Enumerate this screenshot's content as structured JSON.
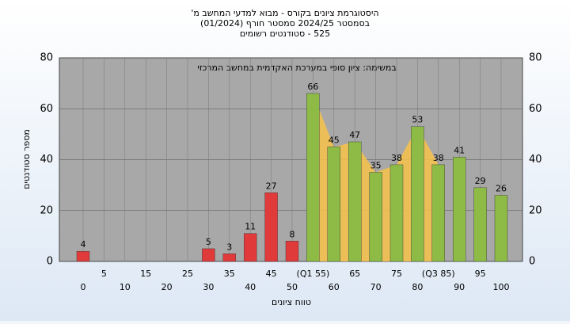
{
  "chart_data": {
    "type": "bar",
    "title": [
      "היסטוגרמת ציונים בקורס - מבוא למדעי המחשב מ'",
      "בסמסטר 2024/25 סמסטר חורף (01/2024)",
      "525 - סטודנטים רשומים"
    ],
    "subtitle": "במשימה: ציון סופי במערכת האקדמית במחשב המרכזי",
    "xlabel": "טווח ציונים",
    "ylabel": "מספר סטודנטים",
    "categories": [
      "0",
      "5",
      "10",
      "15",
      "20",
      "25",
      "30",
      "35",
      "40",
      "45",
      "50",
      "(Q1 55)",
      "60",
      "65",
      "70",
      "75",
      "80",
      "(Q3 85)",
      "90",
      "95",
      "100"
    ],
    "values": [
      4,
      0,
      0,
      0,
      0,
      0,
      5,
      3,
      11,
      27,
      8,
      66,
      45,
      47,
      35,
      38,
      53,
      38,
      41,
      29,
      26
    ],
    "colors": [
      "#e03a3a",
      "#e03a3a",
      "#e03a3a",
      "#e03a3a",
      "#e03a3a",
      "#e03a3a",
      "#e03a3a",
      "#e03a3a",
      "#e03a3a",
      "#e03a3a",
      "#e03a3a",
      "#8dbb45",
      "#8dbb45",
      "#8dbb45",
      "#8dbb45",
      "#8dbb45",
      "#8dbb45",
      "#8dbb45",
      "#8dbb45",
      "#8dbb45",
      "#8dbb45"
    ],
    "highlight_color": "#f7c24a",
    "ylim": [
      0,
      80
    ],
    "yticks": [
      0,
      20,
      40,
      60,
      80
    ],
    "y2lim": [
      0,
      80
    ],
    "y2ticks": [
      0,
      20,
      40,
      60,
      80
    ],
    "grid": true
  }
}
